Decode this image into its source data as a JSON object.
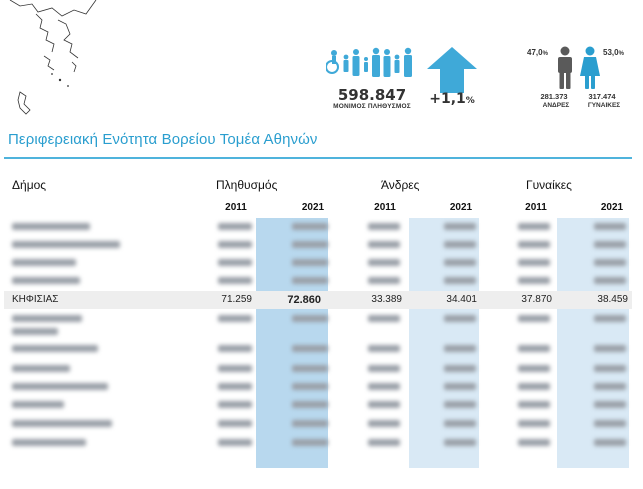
{
  "header": {
    "population_total": "598.847",
    "population_caption": "ΜΟΝΙΜΟΣ ΠΛΗΘΥΣΜΟΣ",
    "change_value": "+1,1",
    "change_unit": "%",
    "male_pct": "47,0",
    "female_pct": "53,0",
    "pct_sign": "%",
    "male_count": "281.373",
    "female_count": "317.474",
    "male_label": "ΑΝΔΡΕΣ",
    "female_label": "ΓΥΝΑΙΚΕΣ"
  },
  "region_title": "Περιφερειακή Ενότητα Βορείου Τομέα Αθηνών",
  "table": {
    "col_municipality": "Δήμος",
    "col_population": "Πληθυσμός",
    "col_men": "Άνδρες",
    "col_women": "Γυναίκες",
    "year_a": "2011",
    "year_b": "2021",
    "focus_row": {
      "name": "ΚΗΦΙΣΙΑΣ",
      "pop_2011": "71.259",
      "pop_2021": "72.860",
      "men_2011": "33.389",
      "men_2021": "34.401",
      "women_2011": "37.870",
      "women_2021": "38.459"
    }
  },
  "colors": {
    "accent": "#2a9ecf",
    "icon_blue": "#3fa9d8",
    "highlight": "#b8d8ee",
    "male_icon": "#5a5a5a",
    "female_icon": "#2a9ecf"
  }
}
